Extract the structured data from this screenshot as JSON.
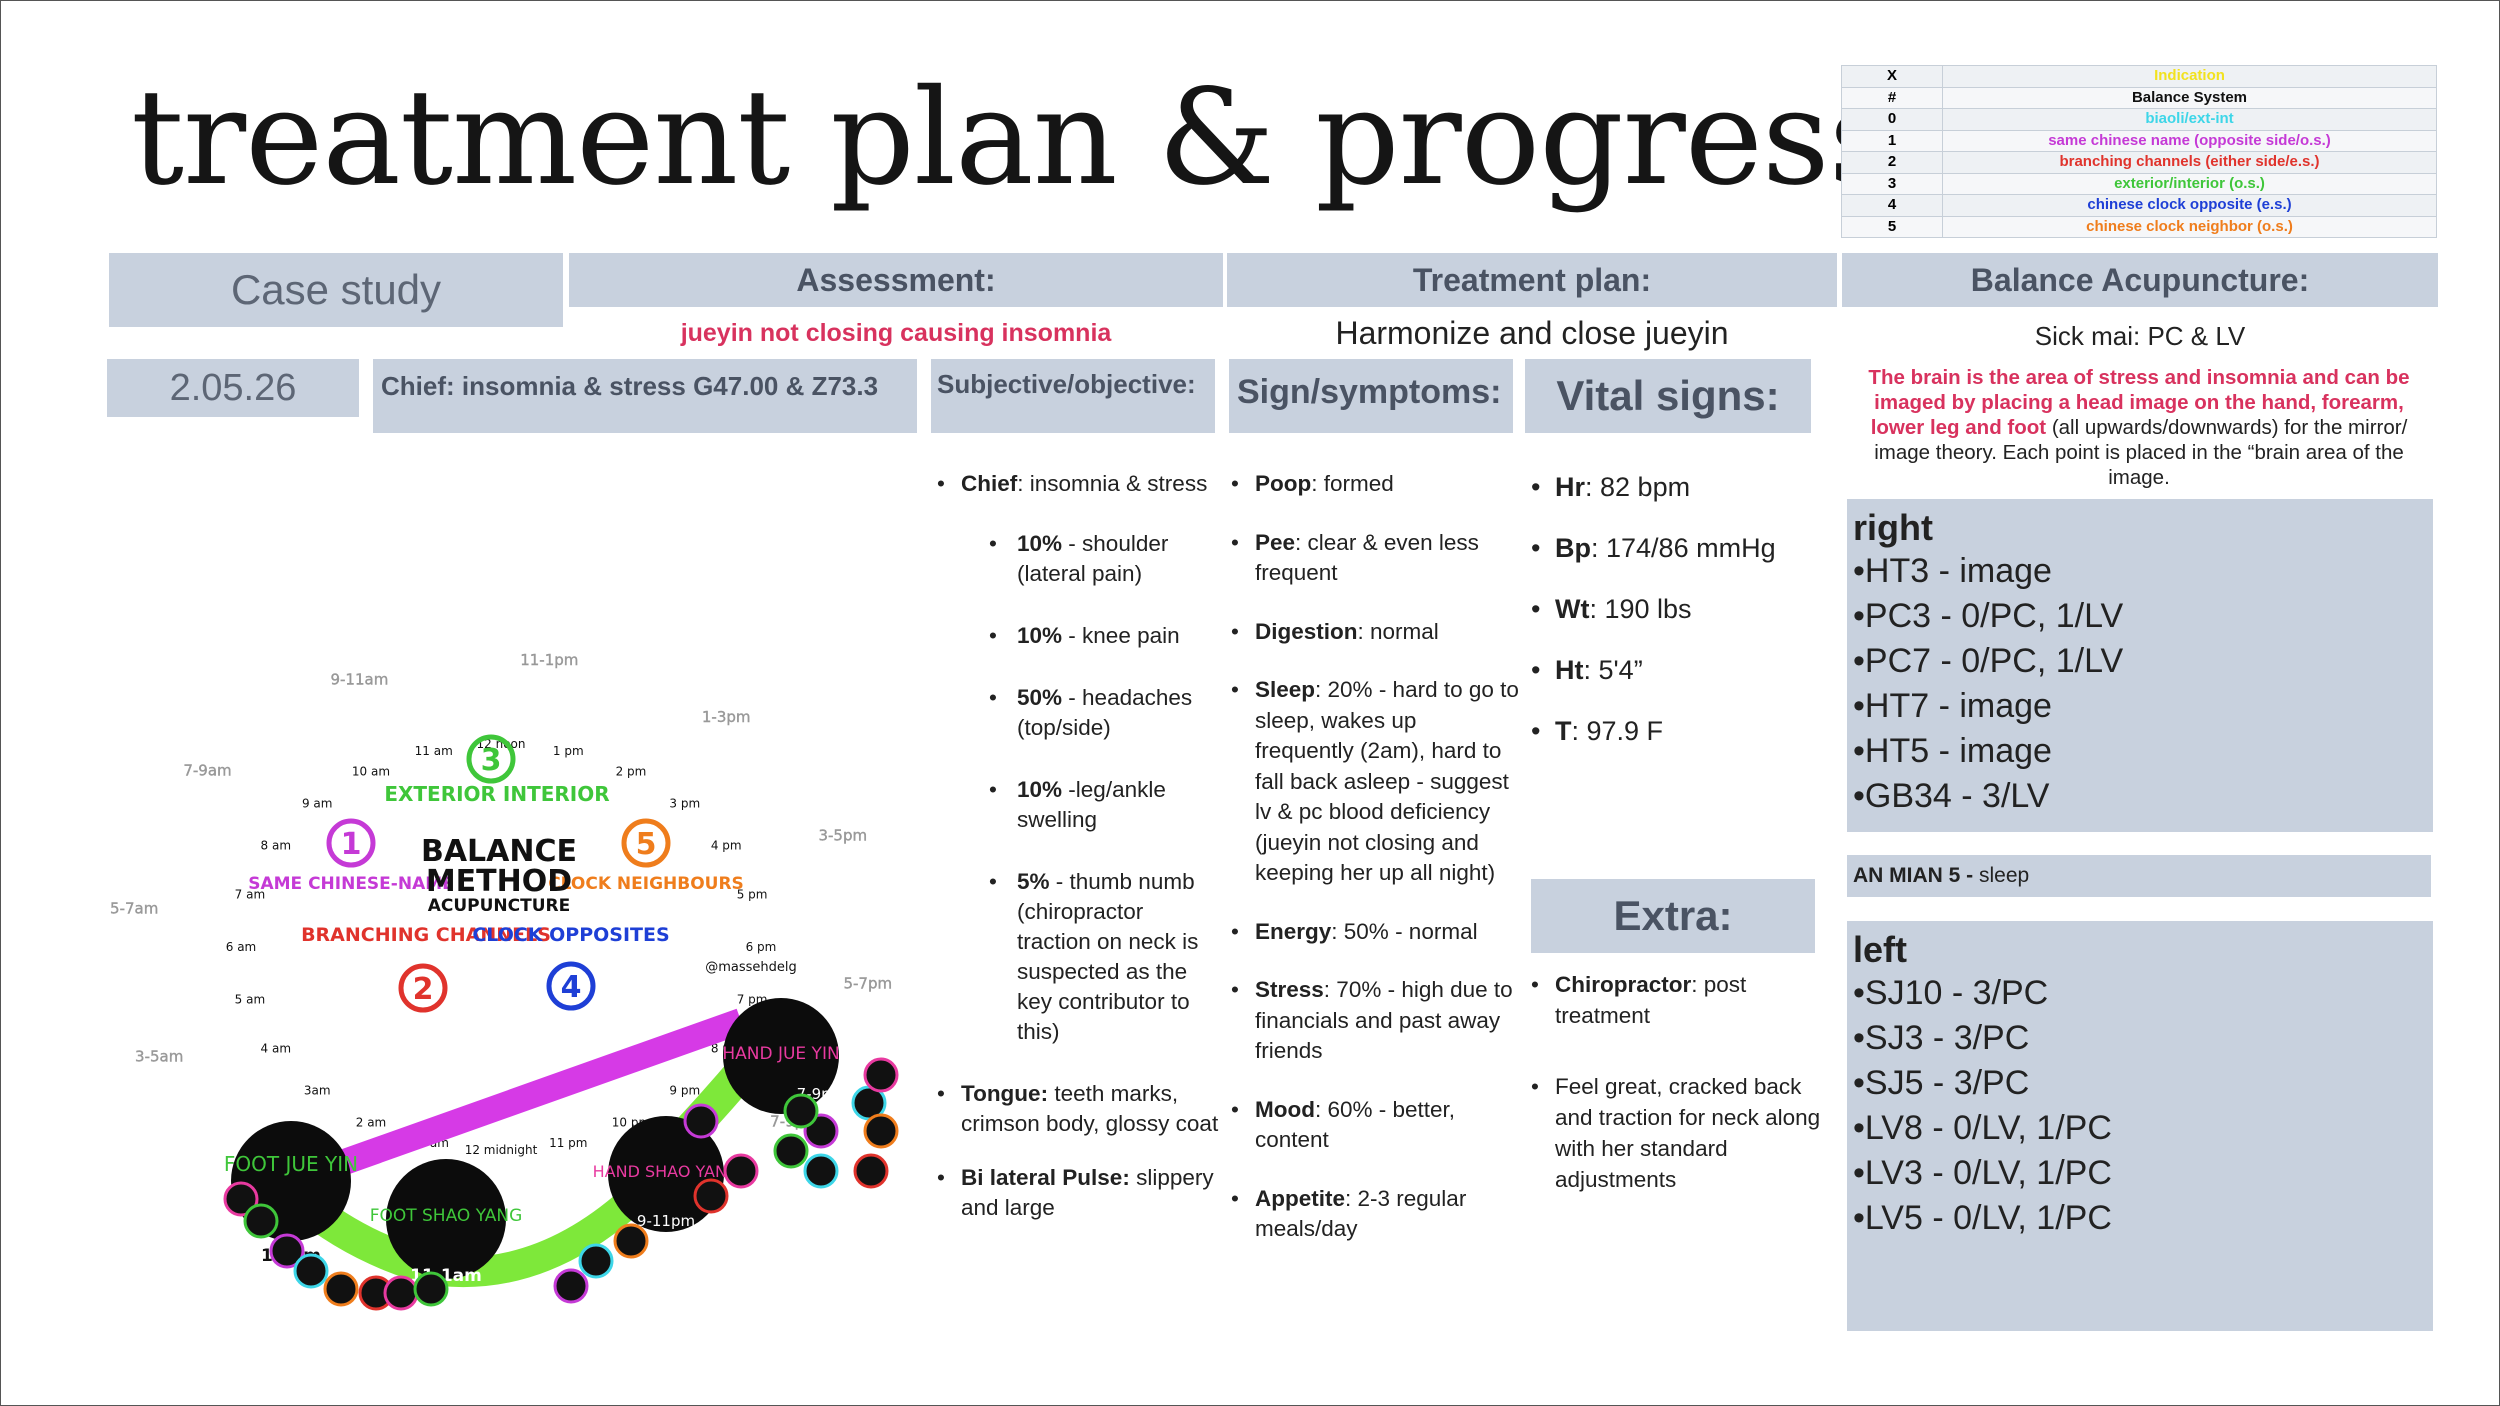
{
  "title": "treatment plan & progress",
  "legend": {
    "rows": [
      {
        "key": "X",
        "label": "Indication",
        "color": "#f2e21f"
      },
      {
        "key": "#",
        "label": "Balance System",
        "color": "#111111"
      },
      {
        "key": "0",
        "label": "biaoli/ext-int",
        "color": "#3dd6e8"
      },
      {
        "key": "1",
        "label": "same chinese name (opposite side/o.s.)",
        "color": "#c53ad6"
      },
      {
        "key": "2",
        "label": "branching channels (either side/e.s.)",
        "color": "#e0332c"
      },
      {
        "key": "3",
        "label": "exterior/interior (o.s.)",
        "color": "#3fc63a"
      },
      {
        "key": "4",
        "label": "chinese clock opposite (e.s.)",
        "color": "#1e3fd6"
      },
      {
        "key": "5",
        "label": "chinese clock neighbor (o.s.)",
        "color": "#ef7d1c"
      }
    ]
  },
  "headers": {
    "case": "Case study",
    "assessment": "Assessment:",
    "treatment": "Treatment plan:",
    "balance": "Balance Acupuncture:"
  },
  "assessment_text": "jueyin not closing causing insomnia",
  "treatment_text": "Harmonize and close jueyin",
  "balance_text": "Sick mai: PC & LV",
  "date": "2.05.26",
  "chief": "Chief: insomnia & stress G47.00 & Z73.3",
  "subjective_header": "Subjective/objective:",
  "signs_header": "Sign/symptoms:",
  "vitals_header": "Vital signs:",
  "extra_header": "Extra:",
  "brain_note": {
    "highlight": "The brain is the area of stress and insomnia and can be imaged by placing a head image on the hand, forearm, lower leg and foot",
    "rest": " (all upwards/downwards) for the mirror/ image theory. Each point is placed in the “brain area of the image."
  },
  "subjective": {
    "chief_label": "Chief",
    "chief_value": ": insomnia & stress",
    "items": [
      {
        "pct": "10%",
        "text": " - shoulder (lateral pain)"
      },
      {
        "pct": "10%",
        "text": " - knee pain"
      },
      {
        "pct": "50%",
        "text": " -  headaches (top/side)"
      },
      {
        "pct": "10%",
        "text": " -leg/ankle swelling"
      },
      {
        "pct": "5%",
        "text": " -  thumb numb (chiropractor traction on neck is suspected as the key contributor to this)"
      }
    ],
    "tongue_label": "Tongue:",
    "tongue_value": " teeth marks, crimson body, glossy coat",
    "pulse_label": "Bi lateral Pulse:",
    "pulse_value": " slippery and large"
  },
  "signs": [
    {
      "label": "Poop",
      "value": ": formed"
    },
    {
      "label": "Pee",
      "value": ": clear & even less frequent"
    },
    {
      "label": "Digestion",
      "value": ": normal"
    },
    {
      "label": "Sleep",
      "value": ": 20% - hard to go to sleep, wakes up frequently (2am), hard to fall back asleep - suggest lv & pc blood deficiency (jueyin not closing and keeping her up all night)"
    },
    {
      "label": "Energy",
      "value": ": 50% - normal"
    },
    {
      "label": "Stress",
      "value": ": 70% - high due to financials and past away friends"
    },
    {
      "label": "Mood",
      "value": ": 60% - better, content"
    },
    {
      "label": "Appetite",
      "value": ": 2-3 regular meals/day"
    }
  ],
  "vitals": [
    {
      "label": "Hr",
      "value": ": 82 bpm"
    },
    {
      "label": "Bp",
      "value": ": 174/86 mmHg"
    },
    {
      "label": "Wt",
      "value": ": 190 lbs"
    },
    {
      "label": "Ht",
      "value": ": 5'4”"
    },
    {
      "label": "T",
      "value": ": 97.9 F"
    }
  ],
  "extra": [
    {
      "label": "Chiropractor",
      "value": ": post treatment"
    },
    {
      "label": "",
      "value": "Feel great, cracked back and traction for neck along with her standard adjustments"
    }
  ],
  "right": {
    "title": "right",
    "points": [
      "•HT3 - image",
      "•PC3 - 0/PC, 1/LV",
      "•PC7 - 0/PC, 1/LV",
      "•HT7 - image",
      "•HT5 - image",
      "•GB34 - 3/LV"
    ]
  },
  "anmian": {
    "label": "AN MIAN 5 -",
    "value": " sleep"
  },
  "left": {
    "title": "left",
    "points": [
      "•SJ10 - 3/PC",
      "•SJ3 - 3/PC",
      "•SJ5 - 3/PC",
      "•LV8 - 0/LV, 1/PC",
      "•LV3 - 0/LV, 1/PC",
      "•LV5 - 0/LV, 1/PC"
    ]
  },
  "clock_diagram": {
    "hours": [
      "12 noon",
      "1 pm",
      "2 pm",
      "3 pm",
      "4 pm",
      "5 pm",
      "6 pm",
      "7 pm",
      "8 pm",
      "9 pm",
      "10 pm",
      "11 pm",
      "12 midnight",
      "1 am",
      "2 am",
      "3am",
      "4 am",
      "5 am",
      "6 am",
      "7 am",
      "8 am",
      "9 am",
      "10 am",
      "11 am"
    ],
    "periods": [
      "11-1pm",
      "1-3pm",
      "3-5pm",
      "5-7pm",
      "7-9pm",
      "9-11pm",
      "11-1am",
      "1-3am",
      "3-5am",
      "5-7am",
      "7-9am",
      "9-11am"
    ],
    "center": [
      "BALANCE",
      "METHOD",
      "ACUPUNCTURE"
    ],
    "systems": [
      {
        "num": "3",
        "label": "EXTERIOR INTERIOR"
      },
      {
        "num": "1",
        "label": "SAME CHINESE-NAME"
      },
      {
        "num": "5",
        "label": "CLOCK NEIGHBOURS"
      },
      {
        "num": "2",
        "label": "BRANCHING CHANNELS"
      },
      {
        "num": "4",
        "label": "CLOCK OPPOSITES"
      }
    ],
    "channels": [
      "FOOT JUE YIN",
      "FOOT SHAO YANG",
      "HAND SHAO YANG",
      "HAND JUE YIN"
    ],
    "channel_times": [
      "1-3am",
      "11-1am",
      "9-11pm",
      "7-9pm"
    ],
    "signature": "@massehdelg"
  }
}
